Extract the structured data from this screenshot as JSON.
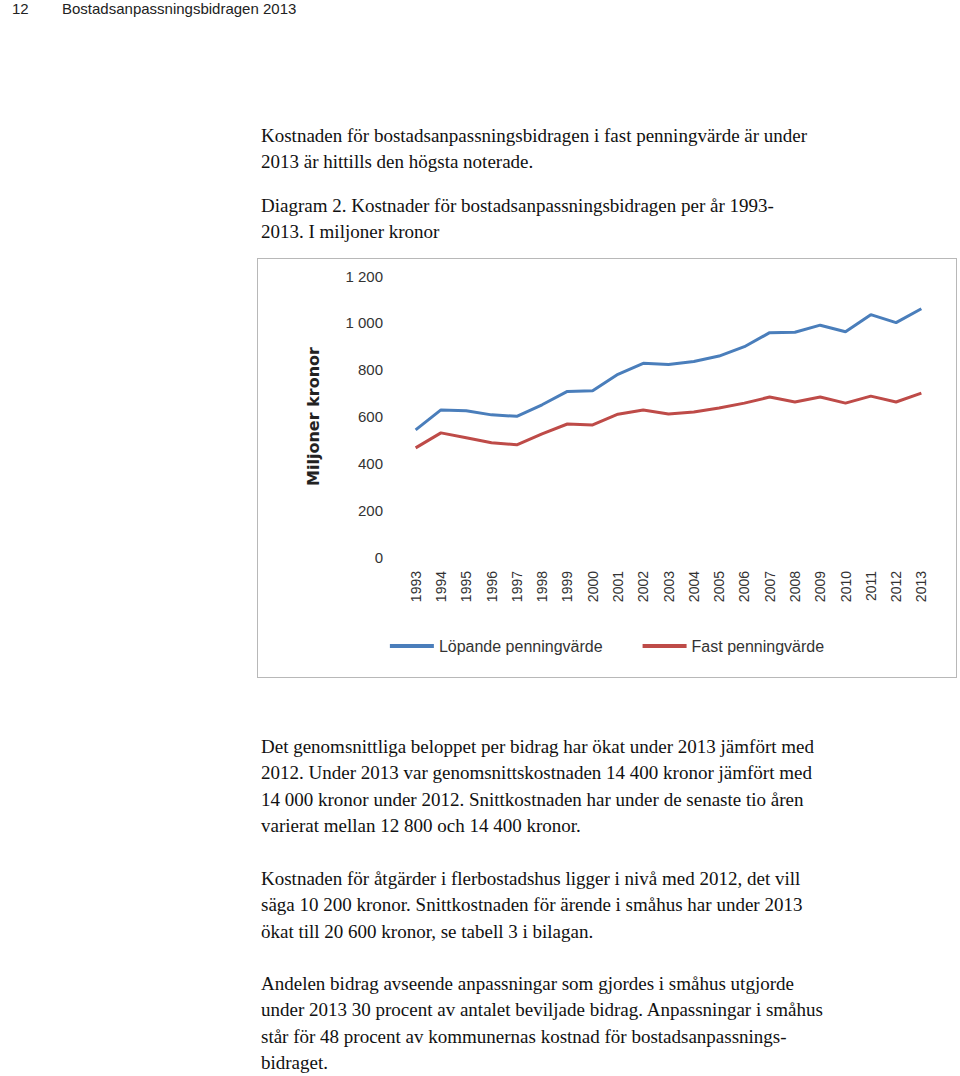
{
  "header": {
    "page_number": "12",
    "title": "Bostadsanpassningsbidragen 2013"
  },
  "intro": [
    "Kostnaden för bostadsanpassningsbidragen i fast penningvärde är under",
    "2013 är hittills den högsta noterade."
  ],
  "caption": [
    "Diagram 2. Kostnader för bostadsanpassningsbidragen per år 1993-",
    "2013. I miljoner kronor"
  ],
  "chart_data": {
    "type": "line",
    "y_label": "Miljoner kronor",
    "categories": [
      "1993",
      "1994",
      "1995",
      "1996",
      "1997",
      "1998",
      "1999",
      "2000",
      "2001",
      "2002",
      "2003",
      "2004",
      "2005",
      "2006",
      "2007",
      "2008",
      "2009",
      "2010",
      "2011",
      "2012",
      "2013"
    ],
    "series": [
      {
        "name": "Löpande penningvärde",
        "color": "#4a7ebb",
        "marker": "none",
        "line_style": "solid",
        "values": [
          543,
          628,
          625,
          607,
          601,
          650,
          707,
          710,
          780,
          827,
          822,
          835,
          858,
          898,
          958,
          960,
          990,
          962,
          1035,
          1001,
          1060
        ]
      },
      {
        "name": "Fast penningvärde",
        "color": "#be4b48",
        "marker": "none",
        "line_style": "solid",
        "values": [
          466,
          530,
          509,
          488,
          479,
          526,
          568,
          564,
          610,
          628,
          611,
          619,
          636,
          657,
          683,
          662,
          683,
          657,
          687,
          662,
          700
        ]
      }
    ],
    "ylim": [
      0,
      1200
    ],
    "yticks": [
      0,
      200,
      400,
      600,
      800,
      {
        "value": 1000,
        "label": "1 000"
      },
      {
        "value": 1200,
        "label": "1 200"
      }
    ],
    "grid": false,
    "legend": "bottom"
  },
  "body": [
    [
      "Det genomsnittliga beloppet per bidrag har ökat under 2013 jämfört med",
      "2012. Under 2013 var genomsnittskostnaden 14 400 kronor jämfört med",
      "14 000 kronor under 2012. Snittkostnaden har under de senaste tio åren",
      "varierat mellan 12 800 och 14 400 kronor."
    ],
    [
      "Kostnaden för åtgärder i flerbostadshus ligger i nivå med 2012, det vill",
      "säga 10 200 kronor. Snittkostnaden för ärende i småhus har under 2013",
      "ökat till 20 600 kronor, se tabell 3 i bilagan."
    ],
    [
      "Andelen bidrag avseende anpassningar som gjordes i småhus utgjorde",
      "under 2013 30 procent av antalet beviljade bidrag. Anpassningar i småhus",
      "står för 48 procent av kommunernas kostnad för bostadsanpassnings-",
      "bidraget."
    ]
  ]
}
